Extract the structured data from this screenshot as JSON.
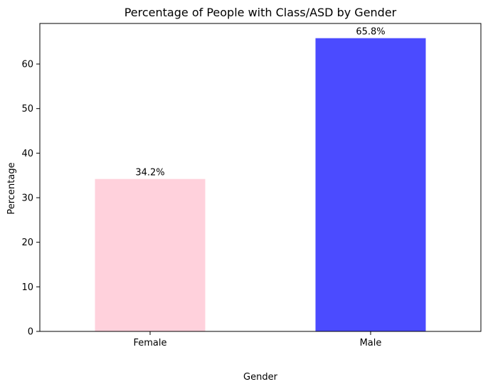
{
  "chart_data": {
    "type": "bar",
    "title": "Percentage of People with Class/ASD by Gender",
    "xlabel": "Gender",
    "ylabel": "Percentage",
    "categories": [
      "Female",
      "Male"
    ],
    "values": [
      34.2,
      65.8
    ],
    "value_labels": [
      "34.2%",
      "65.8%"
    ],
    "colors": [
      "#ffd1dc",
      "#4b4bff"
    ],
    "ylim": [
      0,
      69.1
    ],
    "yticks": [
      0,
      10,
      20,
      30,
      40,
      50,
      60
    ],
    "grid": false,
    "legend": "none"
  }
}
